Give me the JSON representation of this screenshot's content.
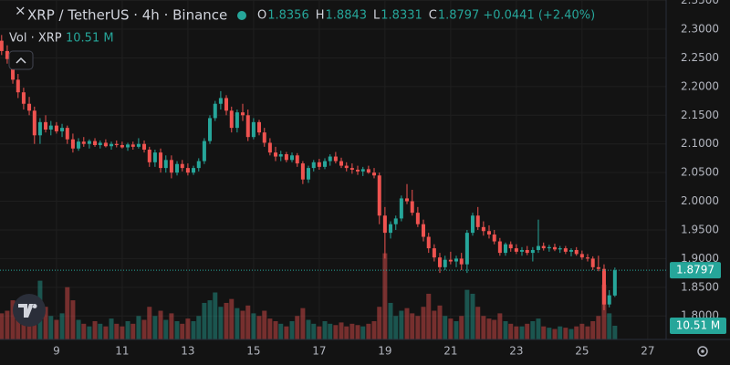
{
  "header": {
    "symbol": "XRP / TetherUS · 4h · Binance",
    "ohlc": [
      {
        "key": "O",
        "value": "1.8356"
      },
      {
        "key": "H",
        "value": "1.8843"
      },
      {
        "key": "L",
        "value": "1.8331"
      },
      {
        "key": "C",
        "value": "1.8797"
      }
    ],
    "change": "+0.0441 (+2.40%)",
    "volume_label": "Vol · XRP",
    "volume_value": "10.51 M"
  },
  "chart_data": {
    "type": "candlestick",
    "up_color": "#26a69a",
    "down_color": "#ef5350",
    "grid": true,
    "xlim": [
      7.28,
      27.56
    ],
    "xticks": [
      9,
      11,
      13,
      15,
      17,
      19,
      21,
      23,
      25,
      27
    ],
    "ylim": [
      1.759,
      2.351
    ],
    "yticks": [
      {
        "value": 1.8,
        "label": "1.8000"
      },
      {
        "value": 1.85,
        "label": "1.8500"
      },
      {
        "value": 1.9,
        "label": "1.9000"
      },
      {
        "value": 1.95,
        "label": "1.9500"
      },
      {
        "value": 2.0,
        "label": "2.0000"
      },
      {
        "value": 2.05,
        "label": "2.0500"
      },
      {
        "value": 2.1,
        "label": "2.1000"
      },
      {
        "value": 2.15,
        "label": "2.1500"
      },
      {
        "value": 2.2,
        "label": "2.2000"
      },
      {
        "value": 2.25,
        "label": "2.2500"
      },
      {
        "value": 2.3,
        "label": "2.3000"
      },
      {
        "value": 2.35,
        "label": "2.3500"
      }
    ],
    "volume_lim": [
      0,
      260
    ],
    "x": [
      7.33,
      7.5,
      7.67,
      7.83,
      8,
      8.17,
      8.33,
      8.5,
      8.67,
      8.83,
      9,
      9.17,
      9.33,
      9.5,
      9.67,
      9.83,
      10,
      10.17,
      10.33,
      10.5,
      10.67,
      10.83,
      11,
      11.17,
      11.33,
      11.5,
      11.67,
      11.83,
      12,
      12.17,
      12.33,
      12.5,
      12.67,
      12.83,
      13,
      13.17,
      13.33,
      13.5,
      13.67,
      13.83,
      14,
      14.17,
      14.33,
      14.5,
      14.67,
      14.83,
      15,
      15.17,
      15.33,
      15.5,
      15.67,
      15.83,
      16,
      16.17,
      16.33,
      16.5,
      16.67,
      16.83,
      17,
      17.17,
      17.33,
      17.5,
      17.67,
      17.83,
      18,
      18.17,
      18.33,
      18.5,
      18.67,
      18.83,
      19,
      19.17,
      19.33,
      19.5,
      19.67,
      19.83,
      20,
      20.17,
      20.33,
      20.5,
      20.67,
      20.83,
      21,
      21.17,
      21.33,
      21.5,
      21.67,
      21.83,
      22,
      22.17,
      22.33,
      22.5,
      22.67,
      22.83,
      23,
      23.17,
      23.33,
      23.5,
      23.67,
      23.83,
      24,
      24.17,
      24.33,
      24.5,
      24.67,
      24.83,
      25,
      25.17,
      25.33,
      25.5,
      25.67,
      25.83,
      26
    ],
    "ohlc": [
      [
        2.28,
        2.29,
        2.255,
        2.262
      ],
      [
        2.262,
        2.272,
        2.24,
        2.248
      ],
      [
        2.248,
        2.255,
        2.205,
        2.212
      ],
      [
        2.212,
        2.222,
        2.18,
        2.19
      ],
      [
        2.19,
        2.198,
        2.16,
        2.17
      ],
      [
        2.17,
        2.182,
        2.15,
        2.158
      ],
      [
        2.158,
        2.165,
        2.1,
        2.115
      ],
      [
        2.115,
        2.145,
        2.1,
        2.138
      ],
      [
        2.138,
        2.15,
        2.12,
        2.125
      ],
      [
        2.125,
        2.14,
        2.115,
        2.132
      ],
      [
        2.132,
        2.138,
        2.118,
        2.122
      ],
      [
        2.122,
        2.135,
        2.112,
        2.128
      ],
      [
        2.128,
        2.132,
        2.1,
        2.108
      ],
      [
        2.108,
        2.118,
        2.085,
        2.092
      ],
      [
        2.092,
        2.11,
        2.088,
        2.104
      ],
      [
        2.104,
        2.112,
        2.095,
        2.1
      ],
      [
        2.1,
        2.108,
        2.092,
        2.105
      ],
      [
        2.105,
        2.11,
        2.095,
        2.098
      ],
      [
        2.098,
        2.106,
        2.092,
        2.102
      ],
      [
        2.102,
        2.108,
        2.094,
        2.096
      ],
      [
        2.096,
        2.104,
        2.09,
        2.1
      ],
      [
        2.1,
        2.106,
        2.094,
        2.098
      ],
      [
        2.098,
        2.104,
        2.092,
        2.094
      ],
      [
        2.094,
        2.102,
        2.088,
        2.099
      ],
      [
        2.099,
        2.104,
        2.09,
        2.095
      ],
      [
        2.095,
        2.11,
        2.092,
        2.1
      ],
      [
        2.1,
        2.106,
        2.085,
        2.09
      ],
      [
        2.09,
        2.095,
        2.06,
        2.068
      ],
      [
        2.068,
        2.09,
        2.06,
        2.085
      ],
      [
        2.085,
        2.092,
        2.05,
        2.058
      ],
      [
        2.058,
        2.08,
        2.05,
        2.072
      ],
      [
        2.072,
        2.08,
        2.04,
        2.05
      ],
      [
        2.05,
        2.07,
        2.045,
        2.065
      ],
      [
        2.065,
        2.072,
        2.052,
        2.058
      ],
      [
        2.058,
        2.066,
        2.045,
        2.05
      ],
      [
        2.05,
        2.062,
        2.046,
        2.058
      ],
      [
        2.058,
        2.075,
        2.052,
        2.07
      ],
      [
        2.07,
        2.11,
        2.065,
        2.105
      ],
      [
        2.105,
        2.15,
        2.1,
        2.145
      ],
      [
        2.145,
        2.175,
        2.14,
        2.17
      ],
      [
        2.17,
        2.192,
        2.16,
        2.18
      ],
      [
        2.18,
        2.185,
        2.15,
        2.158
      ],
      [
        2.158,
        2.165,
        2.12,
        2.128
      ],
      [
        2.128,
        2.16,
        2.12,
        2.155
      ],
      [
        2.155,
        2.17,
        2.14,
        2.15
      ],
      [
        2.15,
        2.16,
        2.105,
        2.112
      ],
      [
        2.112,
        2.145,
        2.108,
        2.138
      ],
      [
        2.138,
        2.142,
        2.115,
        2.12
      ],
      [
        2.12,
        2.128,
        2.095,
        2.102
      ],
      [
        2.102,
        2.11,
        2.08,
        2.085
      ],
      [
        2.085,
        2.095,
        2.07,
        2.078
      ],
      [
        2.078,
        2.088,
        2.07,
        2.082
      ],
      [
        2.082,
        2.086,
        2.068,
        2.072
      ],
      [
        2.072,
        2.085,
        2.068,
        2.08
      ],
      [
        2.08,
        2.084,
        2.06,
        2.066
      ],
      [
        2.066,
        2.07,
        2.03,
        2.038
      ],
      [
        2.038,
        2.062,
        2.032,
        2.058
      ],
      [
        2.058,
        2.072,
        2.052,
        2.068
      ],
      [
        2.068,
        2.074,
        2.055,
        2.06
      ],
      [
        2.06,
        2.075,
        2.056,
        2.07
      ],
      [
        2.07,
        2.082,
        2.062,
        2.078
      ],
      [
        2.078,
        2.086,
        2.066,
        2.07
      ],
      [
        2.07,
        2.076,
        2.058,
        2.062
      ],
      [
        2.062,
        2.068,
        2.052,
        2.058
      ],
      [
        2.058,
        2.066,
        2.048,
        2.055
      ],
      [
        2.055,
        2.062,
        2.046,
        2.052
      ],
      [
        2.052,
        2.06,
        2.044,
        2.056
      ],
      [
        2.056,
        2.062,
        2.048,
        2.05
      ],
      [
        2.05,
        2.058,
        2.04,
        2.045
      ],
      [
        2.045,
        2.05,
        1.96,
        1.975
      ],
      [
        1.975,
        1.99,
        1.9,
        1.945
      ],
      [
        1.945,
        1.965,
        1.935,
        1.96
      ],
      [
        1.96,
        1.975,
        1.95,
        1.97
      ],
      [
        1.97,
        2.01,
        1.965,
        2.005
      ],
      [
        2.005,
        2.03,
        1.995,
        2.0
      ],
      [
        2.0,
        2.02,
        1.975,
        1.98
      ],
      [
        1.98,
        1.99,
        1.955,
        1.96
      ],
      [
        1.96,
        1.968,
        1.93,
        1.938
      ],
      [
        1.938,
        1.945,
        1.91,
        1.918
      ],
      [
        1.918,
        1.925,
        1.895,
        1.902
      ],
      [
        1.902,
        1.91,
        1.875,
        1.885
      ],
      [
        1.885,
        1.905,
        1.88,
        1.898
      ],
      [
        1.898,
        1.912,
        1.89,
        1.895
      ],
      [
        1.895,
        1.905,
        1.885,
        1.9
      ],
      [
        1.9,
        1.91,
        1.88,
        1.89
      ],
      [
        1.89,
        1.95,
        1.875,
        1.945
      ],
      [
        1.945,
        1.98,
        1.94,
        1.975
      ],
      [
        1.975,
        1.99,
        1.95,
        1.955
      ],
      [
        1.955,
        1.965,
        1.94,
        1.948
      ],
      [
        1.948,
        1.958,
        1.935,
        1.942
      ],
      [
        1.942,
        1.95,
        1.925,
        1.93
      ],
      [
        1.93,
        1.936,
        1.905,
        1.91
      ],
      [
        1.91,
        1.928,
        1.905,
        1.925
      ],
      [
        1.925,
        1.93,
        1.912,
        1.918
      ],
      [
        1.918,
        1.925,
        1.908,
        1.912
      ],
      [
        1.912,
        1.92,
        1.905,
        1.915
      ],
      [
        1.915,
        1.922,
        1.906,
        1.91
      ],
      [
        1.91,
        1.92,
        1.895,
        1.915
      ],
      [
        1.915,
        1.968,
        1.91,
        1.922
      ],
      [
        1.922,
        1.928,
        1.914,
        1.918
      ],
      [
        1.918,
        1.924,
        1.912,
        1.92
      ],
      [
        1.92,
        1.926,
        1.913,
        1.916
      ],
      [
        1.916,
        1.922,
        1.91,
        1.918
      ],
      [
        1.918,
        1.922,
        1.908,
        1.912
      ],
      [
        1.912,
        1.918,
        1.904,
        1.915
      ],
      [
        1.915,
        1.92,
        1.905,
        1.908
      ],
      [
        1.908,
        1.914,
        1.898,
        1.902
      ],
      [
        1.902,
        1.908,
        1.895,
        1.9
      ],
      [
        1.9,
        1.904,
        1.88,
        1.885
      ],
      [
        1.885,
        1.905,
        1.878,
        1.882
      ],
      [
        1.882,
        1.89,
        1.81,
        1.82
      ],
      [
        1.82,
        1.845,
        1.815,
        1.836
      ],
      [
        1.8356,
        1.8843,
        1.8331,
        1.8797
      ]
    ],
    "volume": [
      20,
      22,
      30,
      25,
      18,
      20,
      30,
      45,
      25,
      18,
      15,
      20,
      40,
      30,
      15,
      12,
      10,
      14,
      12,
      10,
      16,
      12,
      10,
      14,
      12,
      18,
      15,
      25,
      18,
      22,
      15,
      20,
      14,
      12,
      16,
      14,
      18,
      28,
      30,
      36,
      25,
      28,
      31,
      24,
      22,
      26,
      20,
      18,
      22,
      16,
      14,
      12,
      10,
      14,
      18,
      24,
      15,
      12,
      10,
      14,
      12,
      11,
      13,
      10,
      12,
      11,
      10,
      12,
      14,
      25,
      66,
      28,
      18,
      22,
      24,
      20,
      18,
      25,
      35,
      22,
      26,
      18,
      16,
      14,
      18,
      38,
      35,
      25,
      18,
      16,
      15,
      20,
      14,
      12,
      10,
      10,
      12,
      14,
      16,
      10,
      9,
      8,
      10,
      9,
      8,
      10,
      12,
      10,
      14,
      18,
      42,
      20,
      10.51
    ]
  }
}
